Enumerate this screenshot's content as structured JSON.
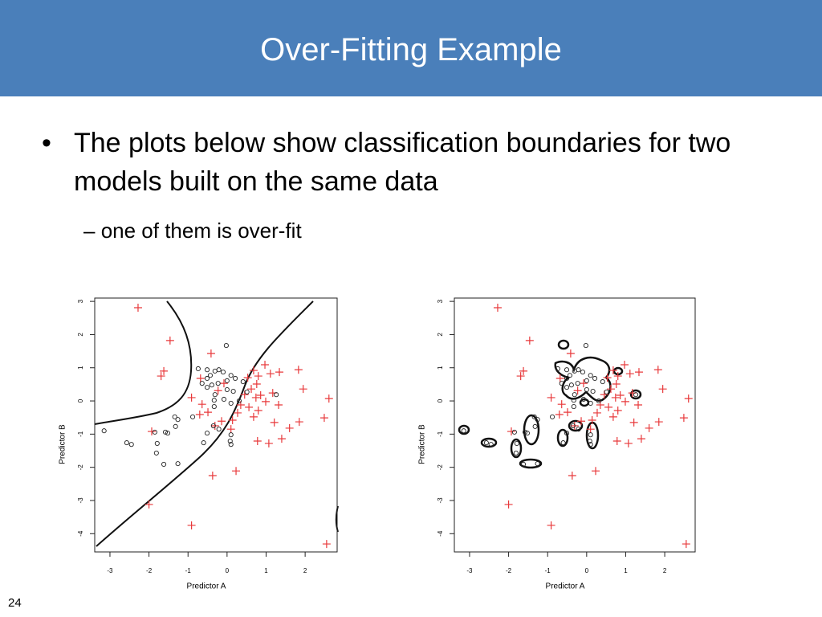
{
  "slide": {
    "title": "Over-Fitting Example",
    "bullet": "The plots below show classification boundaries for two models built on the same data",
    "sub_bullet": "one of them is over-fit",
    "page_number": "24"
  },
  "chart_data": [
    {
      "type": "scatter",
      "x_label": "Predictor A",
      "y_label": "Predictor B",
      "xlim": [
        -3.39,
        2.82
      ],
      "ylim": [
        -4.55,
        3.1
      ],
      "xticks": [
        -3,
        -2,
        -1,
        0,
        1,
        2
      ],
      "yticks": [
        -4,
        -3,
        -2,
        -1,
        0,
        1,
        2,
        3
      ],
      "series": [
        {
          "color": "#e8393b",
          "marker": "plus",
          "x": [
            -2.28,
            -1.46,
            -1.62,
            -1.69,
            -0.41,
            -0.91,
            -0.7,
            -1.93,
            -2.0,
            -0.91,
            -0.37,
            0.23,
            1.83,
            1.95,
            2.61,
            2.49,
            2.55,
            1.85,
            1.6,
            1.4,
            1.07,
            0.78,
            1.21,
            1.32,
            1.17,
            1.34,
            1.11,
            0.8,
            0.68,
            0.53,
            0.76,
            0.62,
            0.86,
            0.45,
            0.56,
            0.8,
            0.35,
            0.27,
            0.14,
            0.1,
            -0.14,
            -0.31,
            -0.49,
            -0.64,
            -0.08,
            -0.23,
            -0.68,
            0.97,
            0.74,
            0.68,
            0.99
          ],
          "y": [
            2.81,
            1.82,
            0.9,
            0.75,
            1.43,
            0.1,
            -0.41,
            -0.92,
            -3.12,
            -3.75,
            -2.25,
            -2.11,
            0.94,
            0.36,
            0.07,
            -0.51,
            -4.31,
            -0.63,
            -0.82,
            -1.14,
            -1.28,
            -1.21,
            -0.65,
            -0.12,
            0.24,
            0.87,
            0.82,
            0.75,
            0.92,
            0.7,
            0.51,
            0.36,
            0.17,
            0.19,
            -0.19,
            -0.29,
            -0.12,
            -0.36,
            -0.58,
            -0.85,
            -0.61,
            -0.75,
            -0.34,
            -0.1,
            0.53,
            0.31,
            0.68,
            1.09,
            0.1,
            -0.48,
            -0.02
          ]
        },
        {
          "color": "#222222",
          "marker": "circle",
          "x": [
            -0.02,
            -0.74,
            -0.51,
            -0.43,
            -0.31,
            -0.21,
            -0.1,
            0.1,
            0.21,
            0,
            -0.23,
            -0.39,
            -0.51,
            -0.31,
            0,
            -0.08,
            0.16,
            0.31,
            0.41,
            0.51,
            1.26,
            0.1,
            -0.33,
            -0.64,
            -1.34,
            -1.26,
            -1.32,
            -1.52,
            -1.85,
            -1.58,
            -1.79,
            -1.81,
            -1.62,
            -1.26,
            -2.57,
            -2.45,
            -3.15,
            -0.88,
            -0.35,
            -0.21,
            -0.6,
            -0.51,
            0.1,
            0.08,
            0.1,
            -0.33,
            -0.51
          ],
          "y": [
            1.67,
            0.97,
            0.68,
            0.77,
            0.9,
            0.94,
            0.87,
            0.77,
            0.68,
            0.61,
            0.53,
            0.48,
            0.41,
            0.19,
            0.34,
            0.05,
            0.29,
            0,
            0.58,
            0.27,
            0.19,
            -0.07,
            -0.17,
            0.53,
            -0.48,
            -0.56,
            -0.77,
            -0.97,
            -0.94,
            -0.94,
            -1.28,
            -1.57,
            -1.91,
            -1.89,
            -1.26,
            -1.31,
            -0.9,
            -0.48,
            -0.75,
            -0.85,
            -1.26,
            -0.97,
            -1.02,
            -1.21,
            -1.31,
            0.02,
            0.94
          ]
        }
      ]
    },
    {
      "type": "scatter",
      "x_label": "Predictor A",
      "y_label": "Predictor B",
      "xlim": [
        -3.39,
        2.78
      ],
      "ylim": [
        -4.55,
        3.1
      ],
      "xticks": [
        -3,
        -2,
        -1,
        0,
        1,
        2
      ],
      "yticks": [
        -4,
        -3,
        -2,
        -1,
        0,
        1,
        2,
        3
      ],
      "series": [
        {
          "color": "#e8393b",
          "marker": "plus",
          "x": [
            -2.28,
            -1.46,
            -1.62,
            -1.69,
            -0.41,
            -0.91,
            -0.7,
            -1.93,
            -2.0,
            -0.91,
            -0.37,
            0.23,
            1.83,
            1.95,
            2.61,
            2.49,
            2.55,
            1.85,
            1.6,
            1.4,
            1.07,
            0.78,
            1.21,
            1.32,
            1.17,
            1.34,
            1.11,
            0.8,
            0.68,
            0.53,
            0.76,
            0.62,
            0.86,
            0.45,
            0.56,
            0.8,
            0.35,
            0.27,
            0.14,
            0.1,
            -0.14,
            -0.31,
            -0.49,
            -0.64,
            -0.08,
            -0.23,
            -0.68,
            0.97,
            0.74,
            0.68,
            0.99
          ],
          "y": [
            2.81,
            1.82,
            0.9,
            0.75,
            1.43,
            0.1,
            -0.41,
            -0.92,
            -3.12,
            -3.75,
            -2.25,
            -2.11,
            0.94,
            0.36,
            0.07,
            -0.51,
            -4.31,
            -0.63,
            -0.82,
            -1.14,
            -1.28,
            -1.21,
            -0.65,
            -0.12,
            0.24,
            0.87,
            0.82,
            0.75,
            0.92,
            0.7,
            0.51,
            0.36,
            0.17,
            0.19,
            -0.19,
            -0.29,
            -0.12,
            -0.36,
            -0.58,
            -0.85,
            -0.61,
            -0.75,
            -0.34,
            -0.1,
            0.53,
            0.31,
            0.68,
            1.09,
            0.1,
            -0.48,
            -0.02
          ]
        },
        {
          "color": "#222222",
          "marker": "circle",
          "x": [
            -0.02,
            -0.74,
            -0.51,
            -0.43,
            -0.31,
            -0.21,
            -0.1,
            0.1,
            0.21,
            0,
            -0.23,
            -0.39,
            -0.51,
            -0.31,
            0,
            -0.08,
            0.16,
            0.31,
            0.41,
            0.51,
            1.26,
            0.1,
            -0.33,
            -0.64,
            -1.34,
            -1.26,
            -1.32,
            -1.52,
            -1.85,
            -1.58,
            -1.79,
            -1.81,
            -1.62,
            -1.26,
            -2.57,
            -2.45,
            -3.15,
            -0.88,
            -0.35,
            -0.21,
            -0.6,
            -0.51,
            0.1,
            0.08,
            0.1,
            -0.33,
            -0.51
          ],
          "y": [
            1.67,
            0.97,
            0.68,
            0.77,
            0.9,
            0.94,
            0.87,
            0.77,
            0.68,
            0.61,
            0.53,
            0.48,
            0.41,
            0.19,
            0.34,
            0.05,
            0.29,
            0,
            0.58,
            0.27,
            0.19,
            -0.07,
            -0.17,
            0.53,
            -0.48,
            -0.56,
            -0.77,
            -0.97,
            -0.94,
            -0.94,
            -1.28,
            -1.57,
            -1.91,
            -1.89,
            -1.26,
            -1.31,
            -0.9,
            -0.48,
            -0.75,
            -0.85,
            -1.26,
            -0.97,
            -1.02,
            -1.21,
            -1.31,
            0.02,
            0.94
          ]
        }
      ]
    }
  ]
}
